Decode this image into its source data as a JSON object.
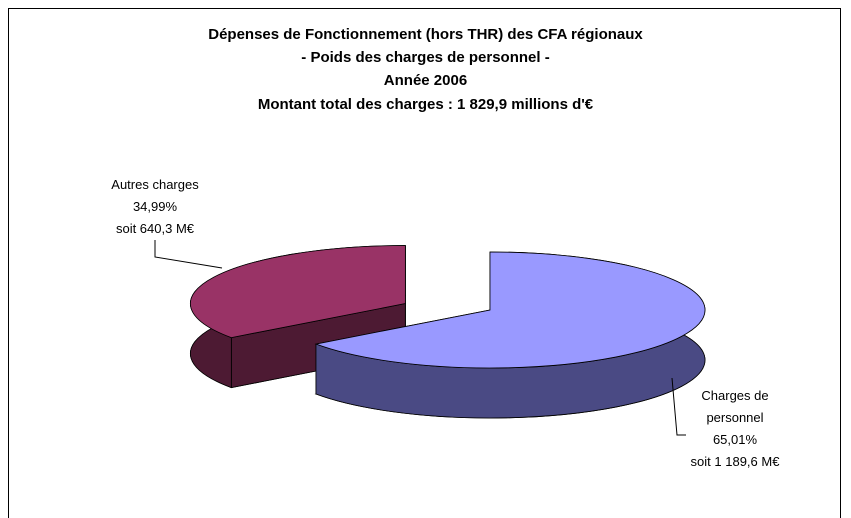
{
  "chart_data": {
    "type": "pie3d",
    "title": [
      "Dépenses de Fonctionnement (hors THR) des CFA régionaux",
      "- Poids des charges de personnel -",
      "Année 2006",
      "Montant total des charges : 1 829,9 millions d'€"
    ],
    "categories": [
      "Charges de personnel",
      "Autres charges"
    ],
    "values": [
      65.01,
      34.99
    ],
    "value_labels": [
      "65,01%",
      "34,99%"
    ],
    "amount_labels": [
      "soit 1 189,6 M€",
      "soit 640,3 M€"
    ],
    "colors": [
      "#9999ff",
      "#993366"
    ],
    "side_colors": [
      "#4a4a84",
      "#4d1a33"
    ]
  }
}
